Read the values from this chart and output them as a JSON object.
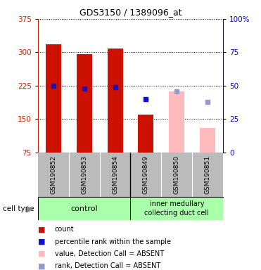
{
  "title": "GDS3150 / 1389096_at",
  "samples": [
    "GSM190852",
    "GSM190853",
    "GSM190854",
    "GSM190849",
    "GSM190850",
    "GSM190851"
  ],
  "count_values": [
    318,
    296,
    308,
    160,
    null,
    null
  ],
  "count_absent_values": [
    null,
    null,
    null,
    null,
    213,
    130
  ],
  "percentile_present": [
    50,
    48,
    49,
    40,
    null,
    null
  ],
  "percentile_absent": [
    null,
    null,
    null,
    null,
    46,
    38
  ],
  "ylim_left": [
    75,
    375
  ],
  "ylim_right": [
    0,
    100
  ],
  "yticks_left": [
    75,
    150,
    225,
    300,
    375
  ],
  "yticks_right": [
    0,
    25,
    50,
    75,
    100
  ],
  "color_count": "#cc1100",
  "color_count_absent": "#ffbbbb",
  "color_percentile": "#1111cc",
  "color_percentile_absent": "#9999cc",
  "color_group_bg": "#aaffaa",
  "color_sample_bg": "#bbbbbb",
  "left_axis_color": "#cc2200",
  "right_axis_color": "#0000cc",
  "bg_plot": "#ffffff",
  "legend_items": [
    [
      "#cc1100",
      "count"
    ],
    [
      "#1111cc",
      "percentile rank within the sample"
    ],
    [
      "#ffbbbb",
      "value, Detection Call = ABSENT"
    ],
    [
      "#9999cc",
      "rank, Detection Call = ABSENT"
    ]
  ]
}
